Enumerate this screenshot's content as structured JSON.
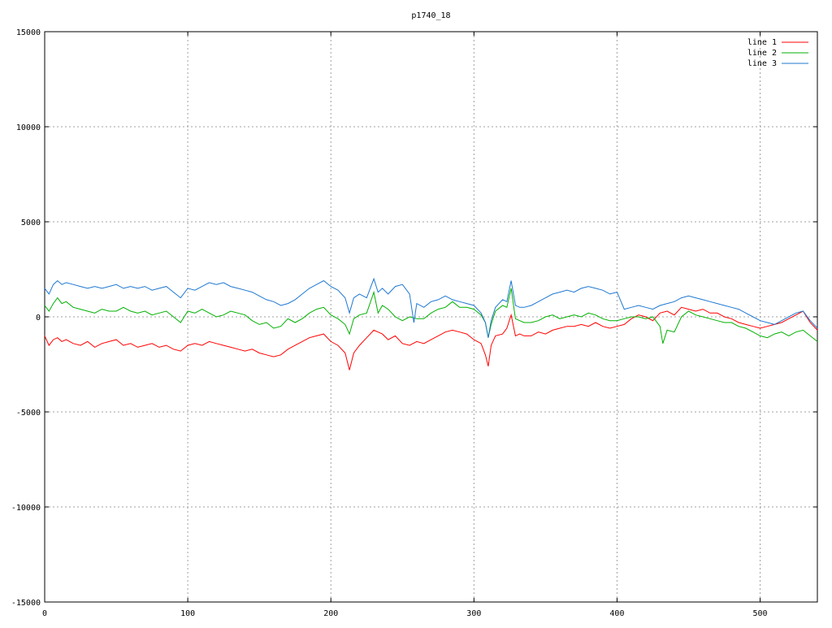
{
  "chart_data": {
    "type": "line",
    "title": "p1740_18",
    "xlabel": "",
    "ylabel": "",
    "xlim": [
      0,
      540
    ],
    "ylim": [
      -15000,
      15000
    ],
    "x_ticks": [
      0,
      100,
      200,
      300,
      400,
      500
    ],
    "y_ticks": [
      -15000,
      -10000,
      -5000,
      0,
      5000,
      10000,
      15000
    ],
    "grid": true,
    "legend_position": "top-right",
    "series": [
      {
        "name": "line 1",
        "color": "#ff0000",
        "x": [
          0,
          3,
          6,
          9,
          12,
          15,
          20,
          25,
          30,
          35,
          40,
          45,
          50,
          55,
          60,
          65,
          70,
          75,
          80,
          85,
          90,
          95,
          100,
          105,
          110,
          115,
          120,
          125,
          130,
          135,
          140,
          145,
          150,
          155,
          160,
          165,
          170,
          175,
          180,
          185,
          190,
          195,
          200,
          205,
          210,
          213,
          216,
          220,
          225,
          230,
          233,
          236,
          240,
          245,
          250,
          255,
          260,
          265,
          270,
          275,
          280,
          285,
          290,
          295,
          300,
          305,
          308,
          310,
          312,
          315,
          320,
          323,
          326,
          329,
          332,
          335,
          340,
          345,
          350,
          355,
          360,
          365,
          370,
          375,
          380,
          385,
          390,
          395,
          400,
          405,
          410,
          415,
          420,
          425,
          430,
          435,
          440,
          445,
          450,
          455,
          460,
          465,
          470,
          475,
          480,
          485,
          490,
          495,
          500,
          505,
          510,
          515,
          520,
          525,
          530,
          535,
          540
        ],
        "y": [
          -1000,
          -1500,
          -1200,
          -1100,
          -1300,
          -1200,
          -1400,
          -1500,
          -1300,
          -1600,
          -1400,
          -1300,
          -1200,
          -1500,
          -1400,
          -1600,
          -1500,
          -1400,
          -1600,
          -1500,
          -1700,
          -1800,
          -1500,
          -1400,
          -1500,
          -1300,
          -1400,
          -1500,
          -1600,
          -1700,
          -1800,
          -1700,
          -1900,
          -2000,
          -2100,
          -2000,
          -1700,
          -1500,
          -1300,
          -1100,
          -1000,
          -900,
          -1300,
          -1500,
          -1900,
          -2800,
          -1900,
          -1500,
          -1100,
          -700,
          -800,
          -900,
          -1200,
          -1000,
          -1400,
          -1500,
          -1300,
          -1400,
          -1200,
          -1000,
          -800,
          -700,
          -800,
          -900,
          -1200,
          -1400,
          -2000,
          -2600,
          -1500,
          -1000,
          -900,
          -600,
          100,
          -1000,
          -900,
          -1000,
          -1000,
          -800,
          -900,
          -700,
          -600,
          -500,
          -500,
          -400,
          -500,
          -300,
          -500,
          -600,
          -500,
          -400,
          -100,
          100,
          0,
          -200,
          200,
          300,
          100,
          500,
          400,
          300,
          400,
          200,
          200,
          0,
          -100,
          -300,
          -400,
          -500,
          -600,
          -500,
          -400,
          -300,
          -100,
          100,
          300,
          -300,
          -700
        ]
      },
      {
        "name": "line 2",
        "color": "#00b000",
        "x": [
          0,
          3,
          6,
          9,
          12,
          15,
          20,
          25,
          30,
          35,
          40,
          45,
          50,
          55,
          60,
          65,
          70,
          75,
          80,
          85,
          90,
          95,
          100,
          105,
          110,
          115,
          120,
          125,
          130,
          135,
          140,
          145,
          150,
          155,
          160,
          165,
          170,
          175,
          180,
          185,
          190,
          195,
          200,
          205,
          210,
          213,
          216,
          220,
          225,
          230,
          233,
          236,
          240,
          245,
          250,
          255,
          260,
          265,
          270,
          275,
          280,
          285,
          290,
          295,
          300,
          305,
          308,
          310,
          312,
          315,
          320,
          323,
          326,
          329,
          332,
          335,
          340,
          345,
          350,
          355,
          360,
          365,
          370,
          375,
          380,
          385,
          390,
          395,
          400,
          405,
          410,
          415,
          420,
          425,
          430,
          432,
          435,
          440,
          445,
          450,
          455,
          460,
          465,
          470,
          475,
          480,
          485,
          490,
          495,
          500,
          505,
          510,
          515,
          520,
          525,
          530,
          535,
          540
        ],
        "y": [
          600,
          300,
          700,
          1000,
          700,
          800,
          500,
          400,
          300,
          200,
          400,
          300,
          300,
          500,
          300,
          200,
          300,
          100,
          200,
          300,
          0,
          -300,
          300,
          200,
          400,
          200,
          0,
          100,
          300,
          200,
          100,
          -200,
          -400,
          -300,
          -600,
          -500,
          -100,
          -300,
          -100,
          200,
          400,
          500,
          100,
          -100,
          -400,
          -900,
          -100,
          100,
          200,
          1300,
          200,
          600,
          400,
          0,
          -200,
          0,
          -100,
          -100,
          200,
          400,
          500,
          800,
          500,
          500,
          400,
          100,
          -300,
          -1100,
          -400,
          300,
          600,
          500,
          1500,
          -100,
          -200,
          -300,
          -300,
          -200,
          0,
          100,
          -100,
          0,
          100,
          0,
          200,
          100,
          -100,
          -200,
          -200,
          -100,
          0,
          0,
          -100,
          0,
          -500,
          -1400,
          -700,
          -800,
          0,
          300,
          100,
          0,
          -100,
          -200,
          -300,
          -300,
          -500,
          -600,
          -800,
          -1000,
          -1100,
          -900,
          -800,
          -1000,
          -800,
          -700,
          -1000,
          -1300
        ]
      },
      {
        "name": "line 3",
        "color": "#1e78d2",
        "x": [
          0,
          3,
          6,
          9,
          12,
          15,
          20,
          25,
          30,
          35,
          40,
          45,
          50,
          55,
          60,
          65,
          70,
          75,
          80,
          85,
          90,
          95,
          100,
          105,
          110,
          115,
          120,
          125,
          130,
          135,
          140,
          145,
          150,
          155,
          160,
          165,
          170,
          175,
          180,
          185,
          190,
          195,
          200,
          205,
          210,
          213,
          216,
          220,
          225,
          230,
          233,
          236,
          240,
          245,
          250,
          255,
          258,
          260,
          265,
          270,
          275,
          280,
          285,
          290,
          295,
          300,
          305,
          308,
          310,
          312,
          315,
          320,
          323,
          326,
          329,
          332,
          335,
          340,
          345,
          350,
          355,
          360,
          365,
          370,
          375,
          380,
          385,
          390,
          395,
          400,
          405,
          410,
          415,
          420,
          425,
          430,
          435,
          440,
          445,
          450,
          455,
          460,
          465,
          470,
          475,
          480,
          485,
          490,
          495,
          500,
          505,
          510,
          515,
          520,
          525,
          530,
          535,
          540
        ],
        "y": [
          1500,
          1200,
          1700,
          1900,
          1700,
          1800,
          1700,
          1600,
          1500,
          1600,
          1500,
          1600,
          1700,
          1500,
          1600,
          1500,
          1600,
          1400,
          1500,
          1600,
          1300,
          1000,
          1500,
          1400,
          1600,
          1800,
          1700,
          1800,
          1600,
          1500,
          1400,
          1300,
          1100,
          900,
          800,
          600,
          700,
          900,
          1200,
          1500,
          1700,
          1900,
          1600,
          1400,
          1000,
          200,
          1000,
          1200,
          1000,
          2000,
          1300,
          1500,
          1200,
          1600,
          1700,
          1200,
          -300,
          700,
          500,
          800,
          900,
          1100,
          900,
          800,
          700,
          600,
          200,
          -300,
          -1100,
          -200,
          500,
          900,
          800,
          1900,
          600,
          500,
          500,
          600,
          800,
          1000,
          1200,
          1300,
          1400,
          1300,
          1500,
          1600,
          1500,
          1400,
          1200,
          1300,
          400,
          500,
          600,
          500,
          400,
          600,
          700,
          800,
          1000,
          1100,
          1000,
          900,
          800,
          700,
          600,
          500,
          400,
          200,
          0,
          -200,
          -300,
          -400,
          -200,
          0,
          200,
          300,
          -200,
          -600
        ]
      }
    ]
  }
}
